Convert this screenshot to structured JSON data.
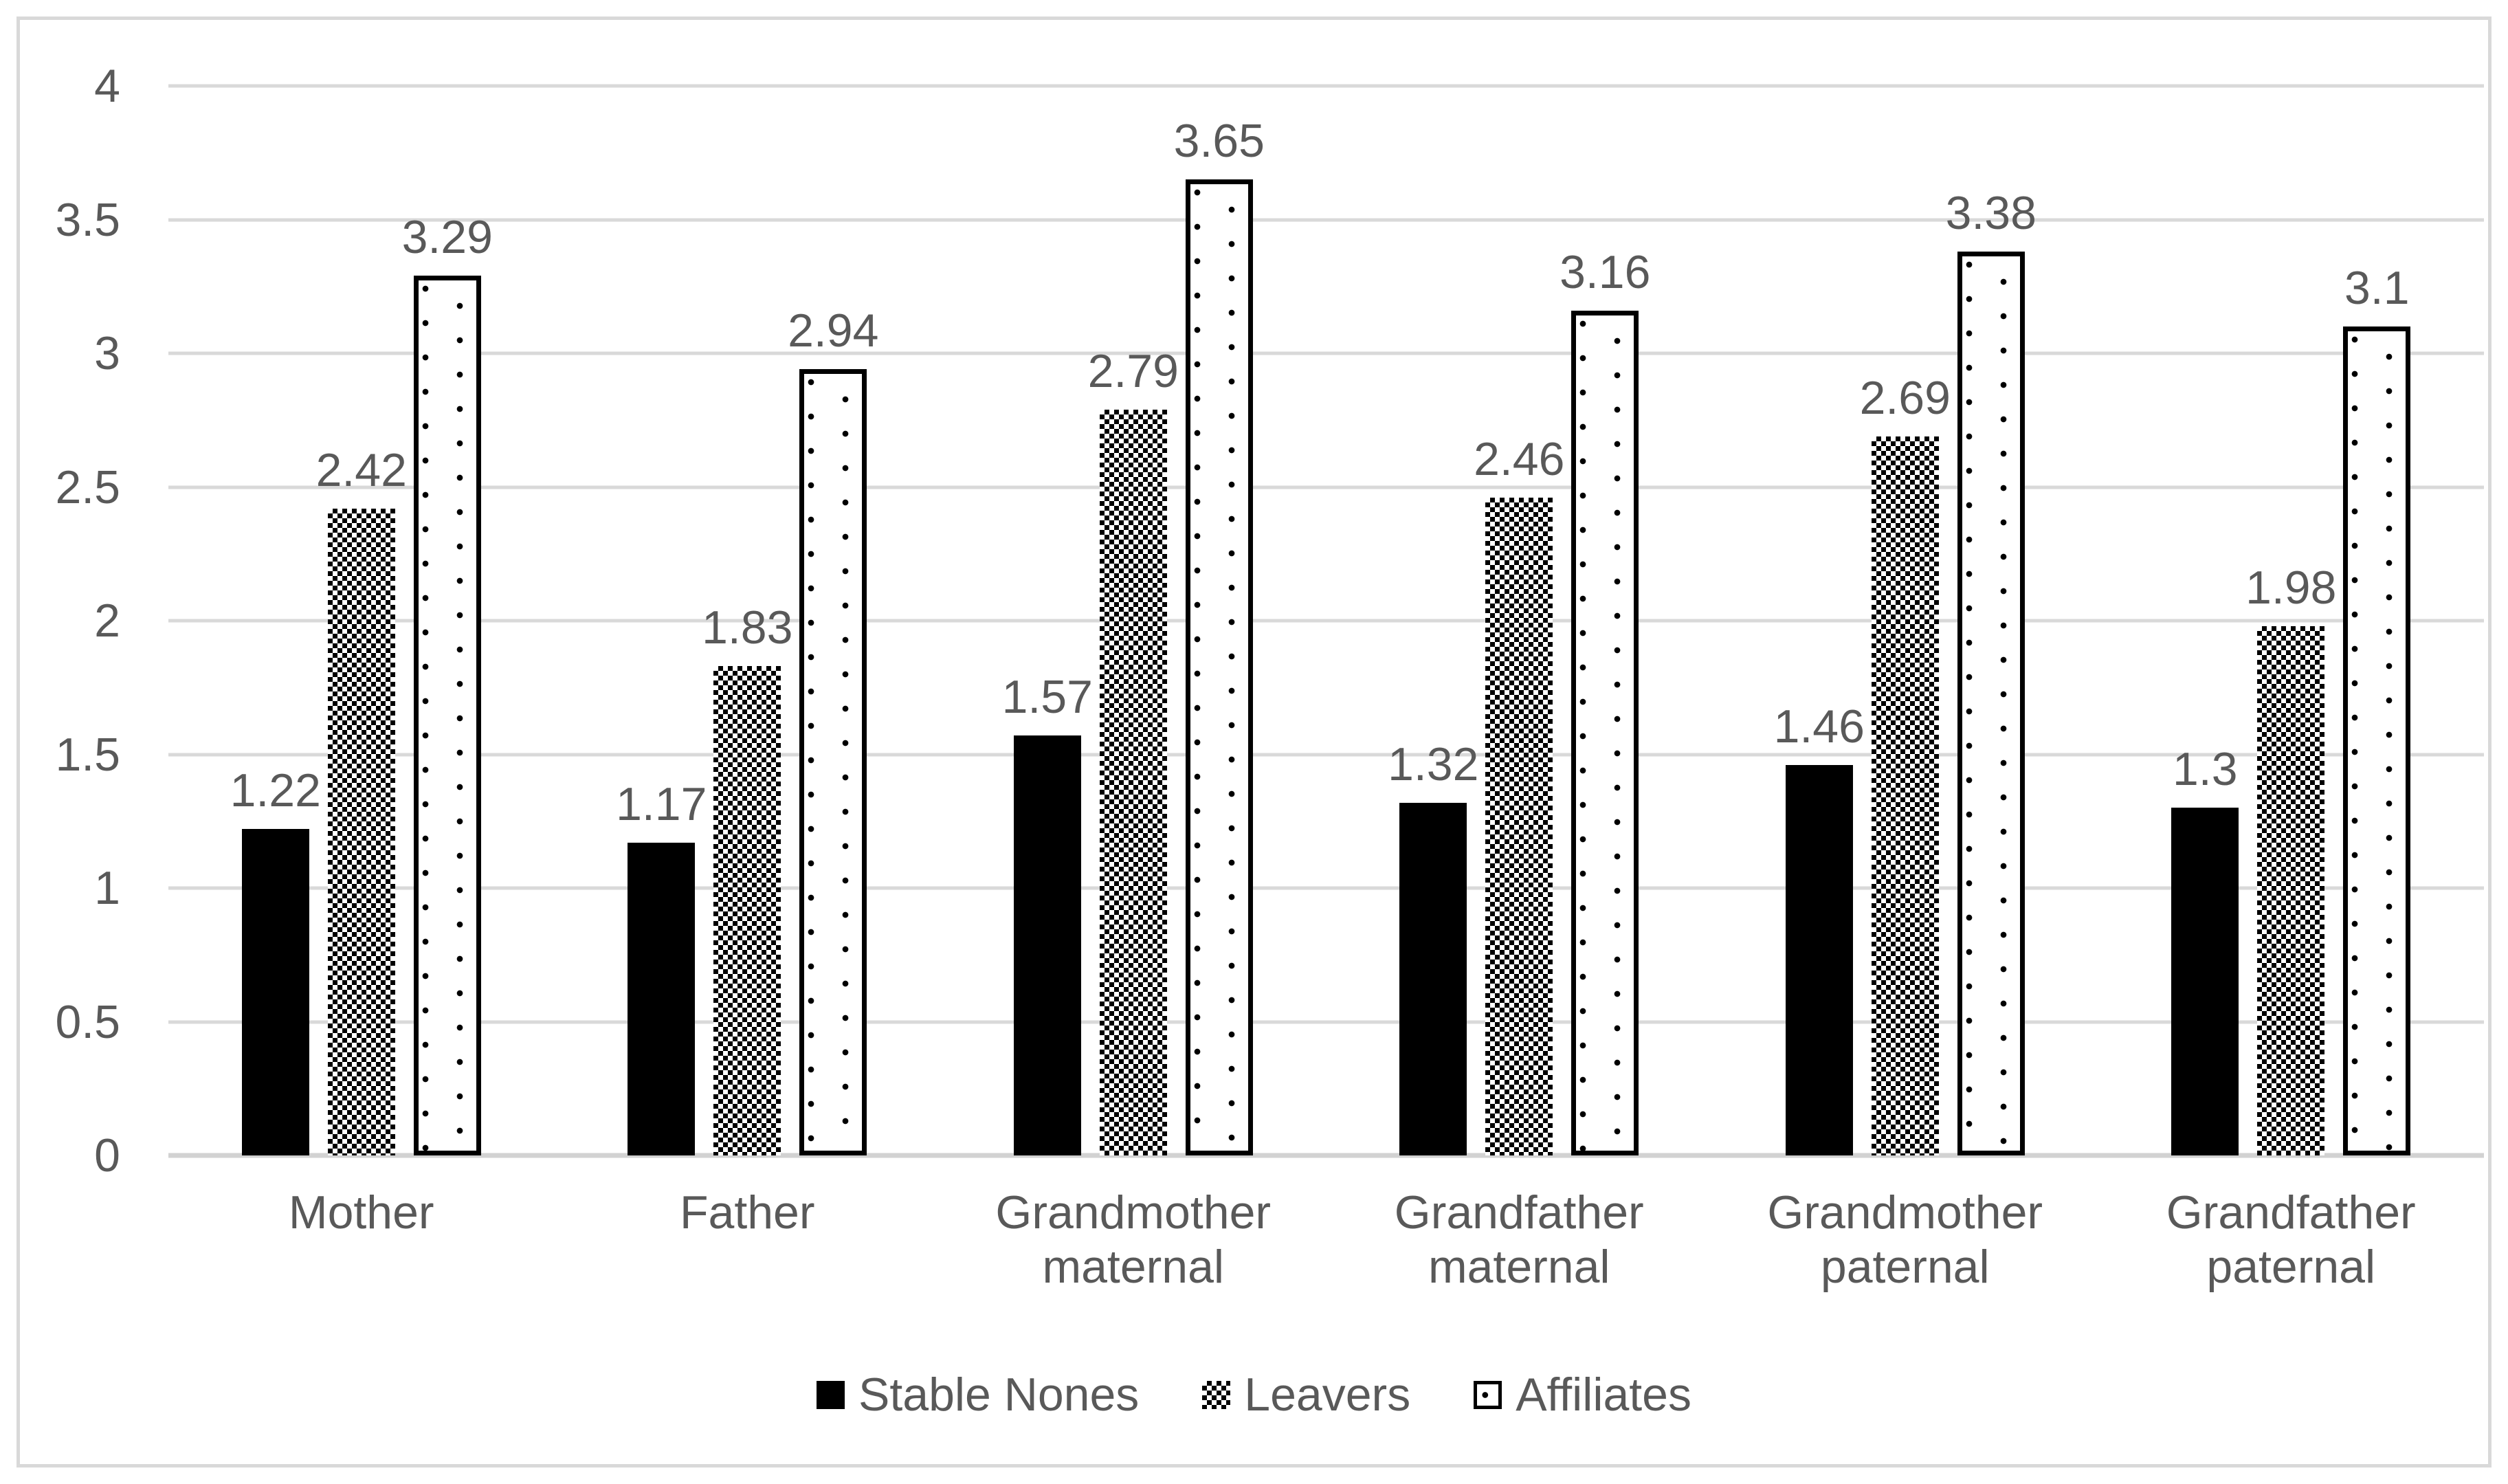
{
  "chart_data": {
    "type": "bar",
    "title": "",
    "categories": [
      "Mother",
      "Father",
      "Grandmother maternal",
      "Grandfather maternal",
      "Grandmother paternal",
      "Grandfather paternal"
    ],
    "series": [
      {
        "name": "Stable Nones",
        "pattern": "solid",
        "values": [
          1.22,
          1.17,
          1.57,
          1.32,
          1.46,
          1.3
        ],
        "data_labels": [
          "1.22",
          "1.17",
          "1.57",
          "1.32",
          "1.46",
          "1.3"
        ]
      },
      {
        "name": "Leavers",
        "pattern": "checker",
        "values": [
          2.42,
          1.83,
          2.79,
          2.46,
          2.69,
          1.98
        ],
        "data_labels": [
          "2.42",
          "1.83",
          "2.79",
          "2.46",
          "2.69",
          "1.98"
        ]
      },
      {
        "name": "Affiliates",
        "pattern": "dots",
        "values": [
          3.29,
          2.94,
          3.65,
          3.16,
          3.38,
          3.1
        ],
        "data_labels": [
          "3.29",
          "2.94",
          "3.65",
          "3.16",
          "3.38",
          "3.1"
        ]
      }
    ],
    "y_axis": {
      "min": 0,
      "max": 4,
      "step": 0.5,
      "tick_labels": [
        "4",
        "3.5",
        "3",
        "2.5",
        "2",
        "1.5",
        "1",
        "0.5",
        "0"
      ]
    },
    "grid": true,
    "legend_position": "bottom",
    "colors": {
      "text": "#595959",
      "gridline": "#d9d9d9",
      "baseline": "#d2d2d2",
      "bar_fill": "#000000",
      "background": "#ffffff",
      "frame_border": "#d9d9d9"
    }
  }
}
